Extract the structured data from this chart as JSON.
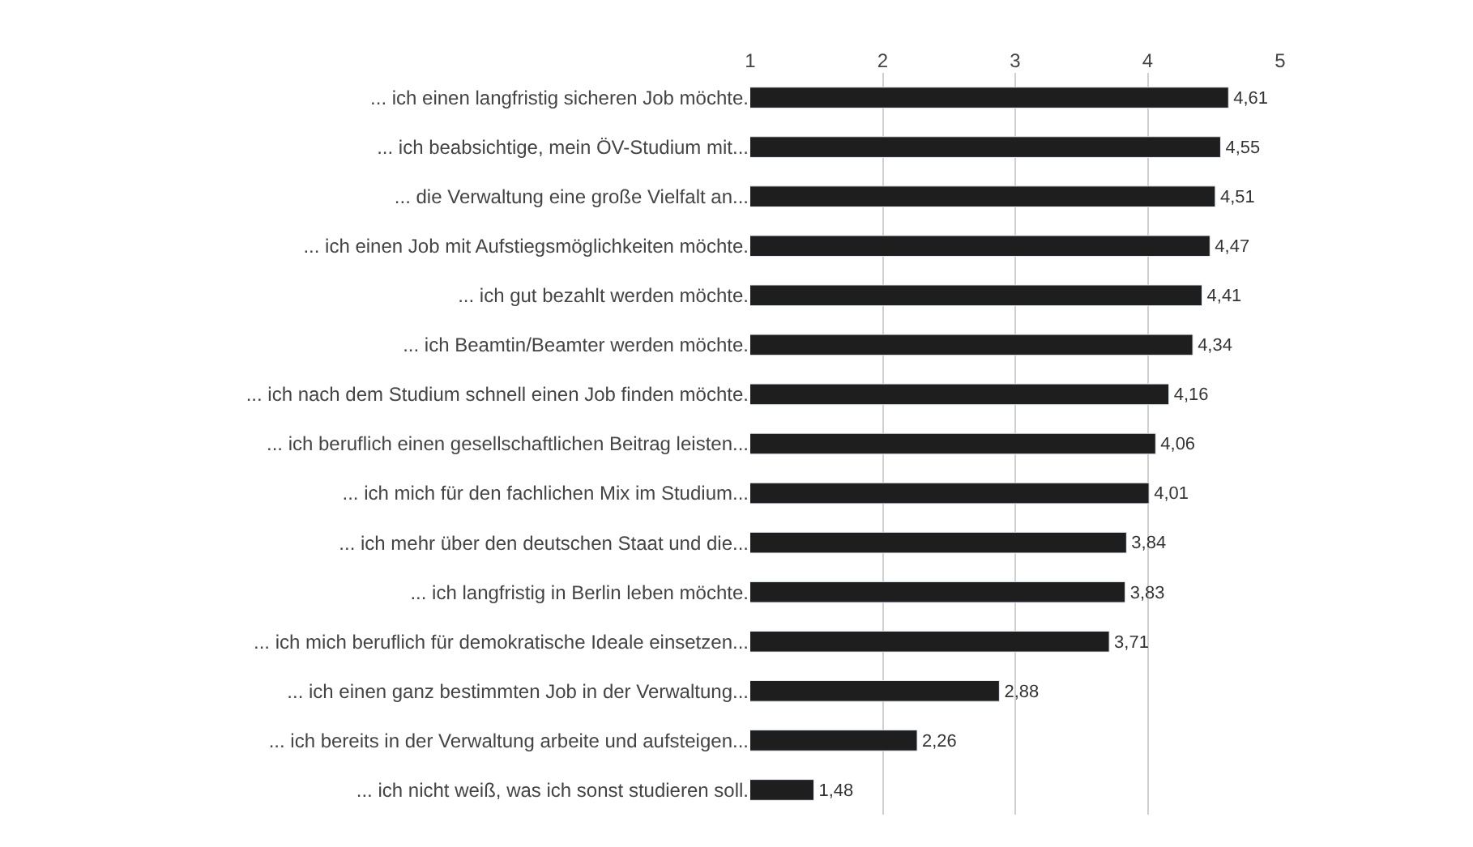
{
  "chart_data": {
    "type": "bar",
    "orientation": "horizontal",
    "categories": [
      "... ich einen langfristig sicheren Job möchte.",
      "... ich beabsichtige, mein ÖV-Studium mit...",
      "... die Verwaltung eine große Vielfalt an...",
      "... ich einen Job mit Aufstiegsmöglichkeiten möchte.",
      "... ich gut bezahlt werden möchte.",
      "... ich Beamtin/Beamter werden möchte.",
      "... ich nach dem Studium schnell einen Job finden möchte.",
      "... ich beruflich einen gesellschaftlichen Beitrag leisten...",
      "... ich mich für den fachlichen Mix im Studium...",
      "... ich mehr über den deutschen Staat und die...",
      "... ich langfristig in Berlin leben möchte.",
      "... ich mich beruflich für demokratische Ideale einsetzen...",
      "... ich einen ganz bestimmten Job in der Verwaltung...",
      "... ich bereits in der Verwaltung arbeite und aufsteigen...",
      "... ich nicht weiß, was ich sonst studieren soll."
    ],
    "values": [
      4.61,
      4.55,
      4.51,
      4.47,
      4.41,
      4.34,
      4.16,
      4.06,
      4.01,
      3.84,
      3.83,
      3.71,
      2.88,
      2.26,
      1.48
    ],
    "value_labels": [
      "4,61",
      "4,55",
      "4,51",
      "4,47",
      "4,41",
      "4,34",
      "4,16",
      "4,06",
      "4,01",
      "3,84",
      "3,83",
      "3,71",
      "2,88",
      "2,26",
      "1,48"
    ],
    "color": "#1e1e1e",
    "xlim": [
      1,
      5
    ],
    "xticks": [
      1,
      2,
      3,
      4,
      5
    ],
    "grid": "x",
    "legend": false
  }
}
